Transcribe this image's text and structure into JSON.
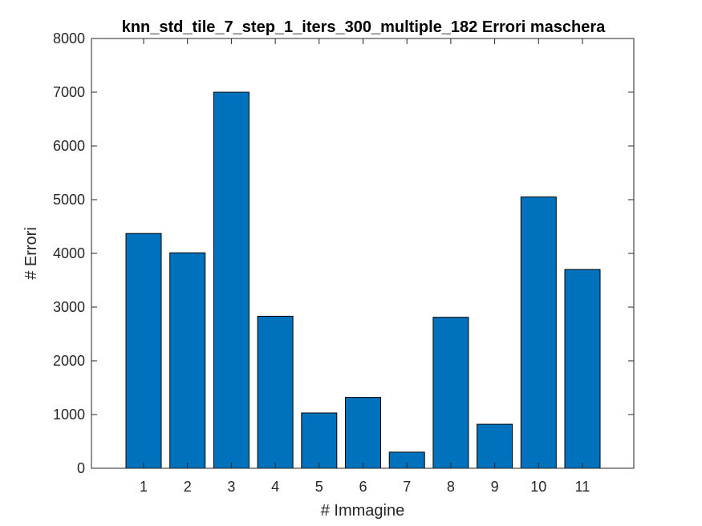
{
  "chart_data": {
    "type": "bar",
    "title": "knn_std_tile_7_step_1_iters_300_multiple_182 Errori maschera",
    "xlabel": "# Immagine",
    "ylabel": "# Errori",
    "categories": [
      "1",
      "2",
      "3",
      "4",
      "5",
      "6",
      "7",
      "8",
      "9",
      "10",
      "11"
    ],
    "values": [
      4370,
      4010,
      7000,
      2830,
      1030,
      1320,
      300,
      2810,
      820,
      5050,
      3700
    ],
    "ylim": [
      0,
      8000
    ],
    "yticks": [
      "0",
      "1000",
      "2000",
      "3000",
      "4000",
      "5000",
      "6000",
      "7000",
      "8000"
    ],
    "bar_color": "#0072BD",
    "grid": false
  }
}
